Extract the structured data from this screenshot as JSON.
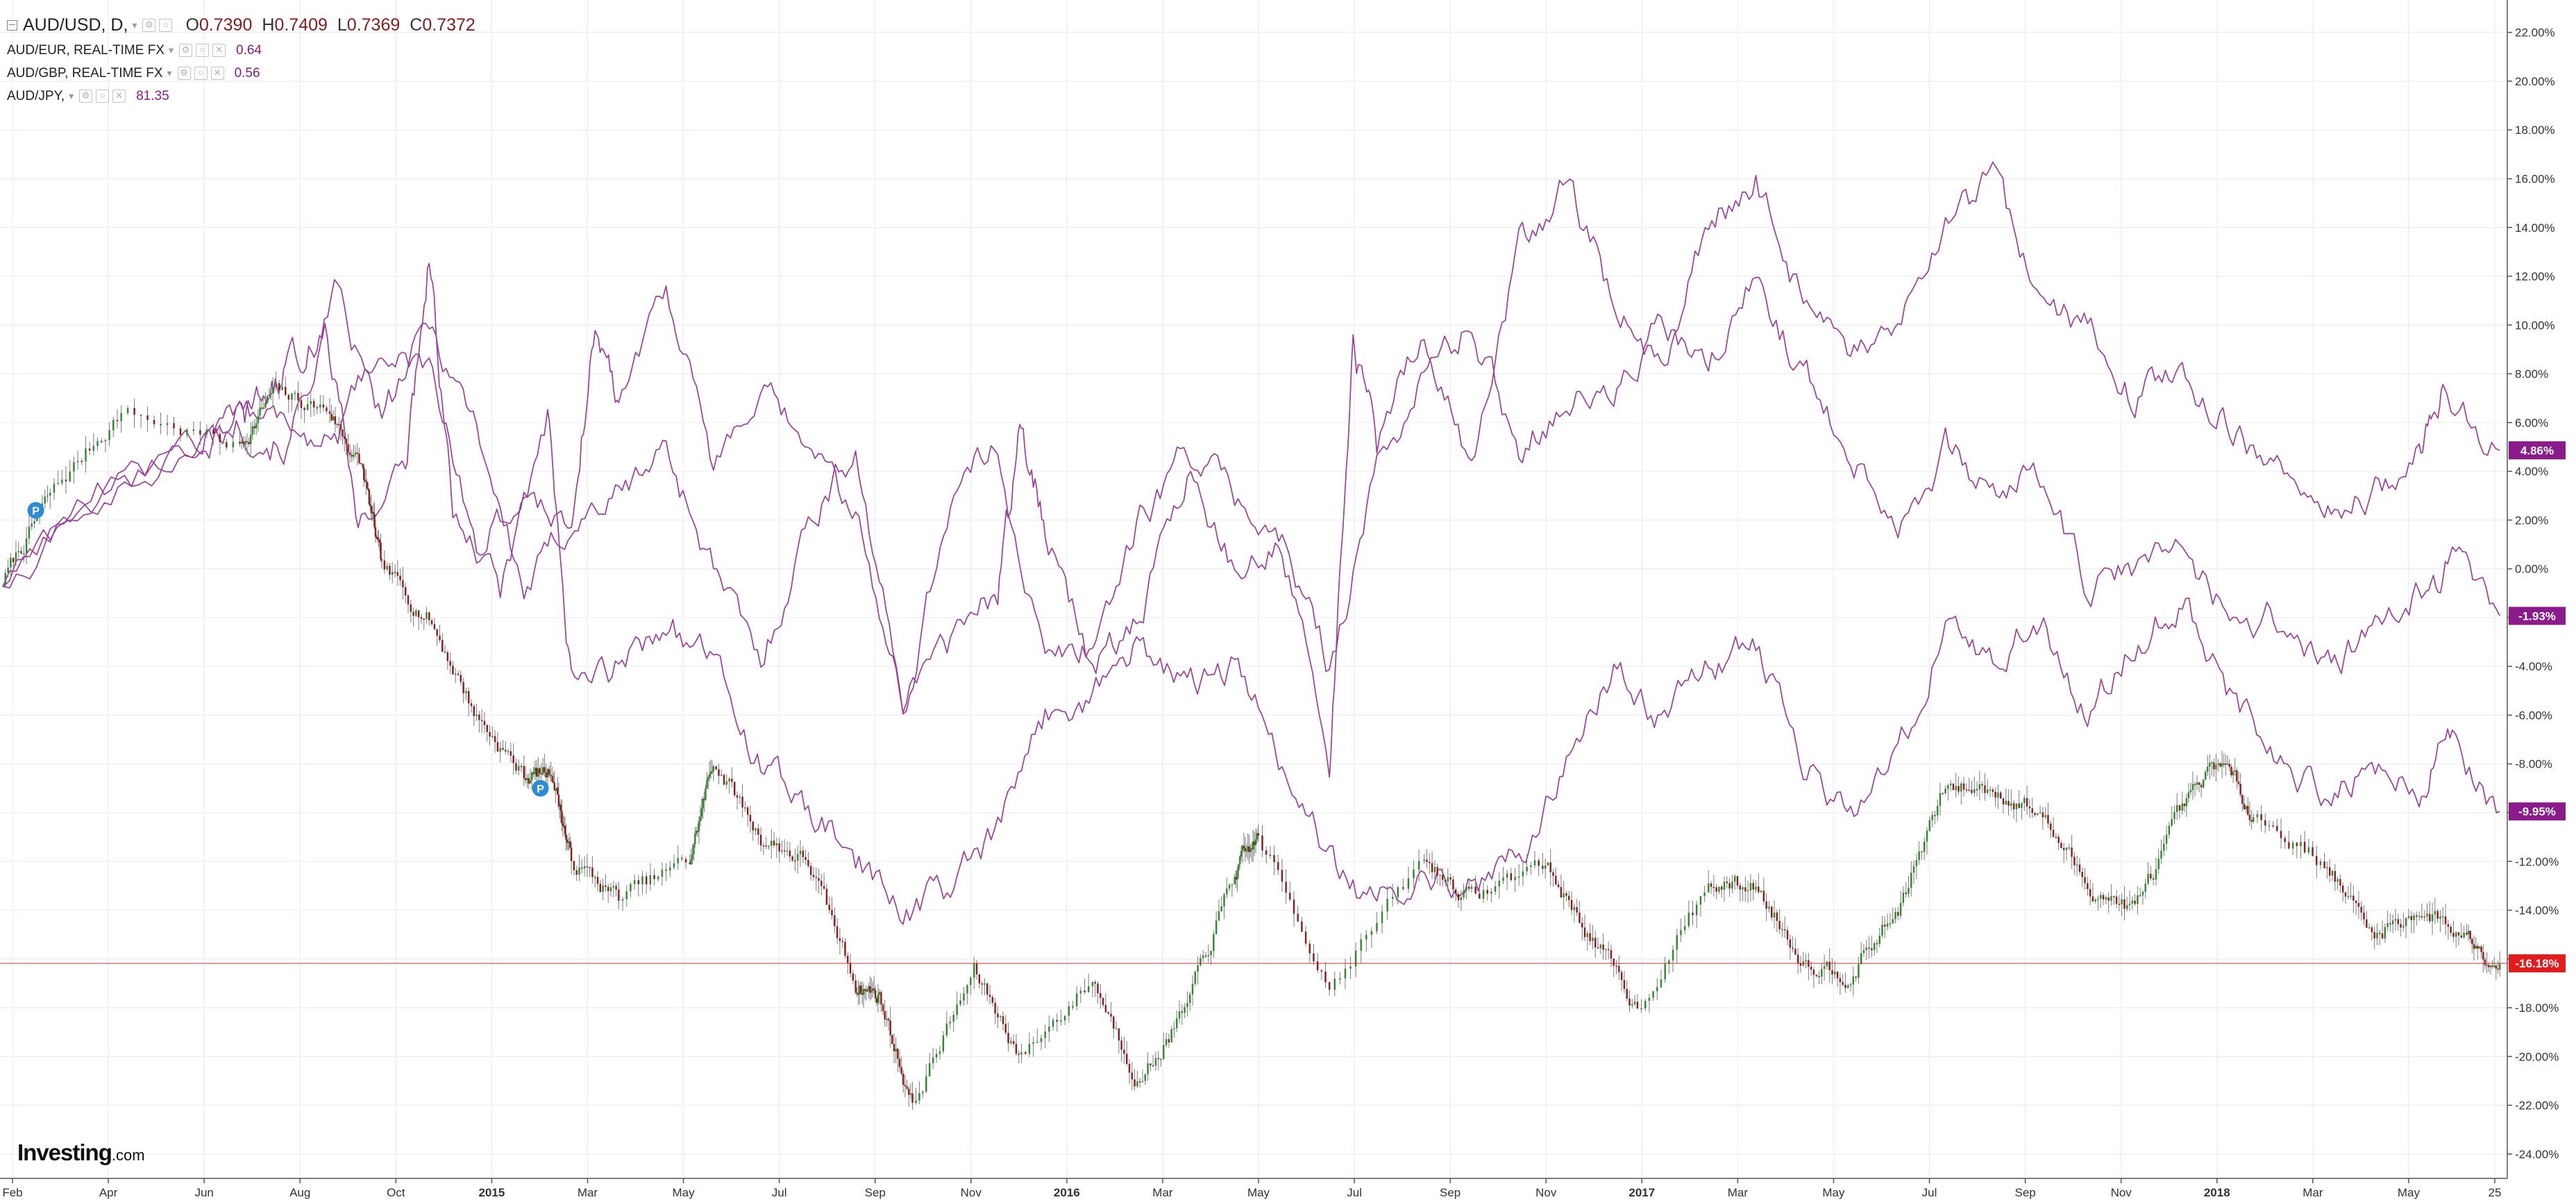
{
  "legend": {
    "main": {
      "symbol": "AUD/USD, D,",
      "o_key": "O",
      "o": "0.7390",
      "h_key": "H",
      "h": "0.7409",
      "l_key": "L",
      "l": "0.7369",
      "c_key": "C",
      "c": "0.7372"
    },
    "overlays": [
      {
        "symbol": "AUD/EUR, REAL-TIME FX",
        "value": "0.64"
      },
      {
        "symbol": "AUD/GBP, REAL-TIME FX",
        "value": "0.56"
      },
      {
        "symbol": "AUD/JPY,",
        "value": "81.35"
      }
    ]
  },
  "branding": {
    "logo": "Investing",
    "suffix": ".com"
  },
  "colors": {
    "overlay": "#9c3f9c",
    "up_candle": "#2b8a2b",
    "down_candle": "#8b1a1a",
    "price_line": "#e51b1b",
    "badge_dark": "#8b1a8b",
    "badge_red": "#e51b1b",
    "grid": "#eef0f3"
  },
  "markers": {
    "event_marker": "P"
  },
  "chart_data": {
    "type": "line",
    "title": "",
    "y_unit": "%",
    "ylim": [
      -24,
      22
    ],
    "yticks": [
      "22.00%",
      "20.00%",
      "18.00%",
      "16.00%",
      "14.00%",
      "12.00%",
      "10.00%",
      "8.00%",
      "6.00%",
      "4.00%",
      "2.00%",
      "0.00%",
      "-2.00%",
      "-4.00%",
      "-6.00%",
      "-8.00%",
      "-10.00%",
      "-12.00%",
      "-14.00%",
      "-16.00%",
      "-18.00%",
      "-20.00%",
      "-22.00%",
      "-24.00%"
    ],
    "xlabels": [
      "Feb",
      "Apr",
      "Jun",
      "Aug",
      "Oct",
      "2015",
      "Mar",
      "May",
      "Jul",
      "Sep",
      "Nov",
      "2016",
      "Mar",
      "May",
      "Jul",
      "Sep",
      "Nov",
      "2017",
      "Mar",
      "May",
      "Jul",
      "Sep",
      "Nov",
      "2018",
      "Mar",
      "May",
      "25"
    ],
    "x_range": [
      0,
      52.8
    ],
    "grid": true,
    "legend_position": "top-left",
    "main_series": {
      "symbol": "AUD/USD",
      "style": "candlestick",
      "last_label": "-16.18%",
      "keypoints": [
        [
          0,
          -0.5
        ],
        [
          1,
          3
        ],
        [
          2.5,
          6.5
        ],
        [
          5,
          5
        ],
        [
          5.7,
          7.2
        ],
        [
          6.9,
          6.5
        ],
        [
          7.6,
          4
        ],
        [
          8,
          0
        ],
        [
          9,
          -2
        ],
        [
          10,
          -6
        ],
        [
          11,
          -8.5
        ],
        [
          11.6,
          -8.3
        ],
        [
          12,
          -12
        ],
        [
          13,
          -13.5
        ],
        [
          14.5,
          -12
        ],
        [
          15,
          -7.8
        ],
        [
          16,
          -11
        ],
        [
          17,
          -12
        ],
        [
          18,
          -17
        ],
        [
          18.5,
          -17.5
        ],
        [
          19.2,
          -22
        ],
        [
          20.5,
          -16.5
        ],
        [
          21.5,
          -20
        ],
        [
          23,
          -16.8
        ],
        [
          24,
          -21
        ],
        [
          25,
          -18
        ],
        [
          26,
          -12.5
        ],
        [
          26.5,
          -11
        ],
        [
          28,
          -17
        ],
        [
          30,
          -12
        ],
        [
          31,
          -13.5
        ],
        [
          32.5,
          -12
        ],
        [
          33.5,
          -15
        ],
        [
          34.5,
          -18
        ],
        [
          36,
          -13
        ],
        [
          37,
          -13
        ],
        [
          38,
          -16
        ],
        [
          39,
          -16.6
        ],
        [
          40,
          -14
        ],
        [
          41,
          -9
        ],
        [
          42,
          -9
        ],
        [
          43,
          -10
        ],
        [
          44,
          -13
        ],
        [
          45,
          -14
        ],
        [
          46,
          -10
        ],
        [
          46.8,
          -7.8
        ],
        [
          47.5,
          -10
        ],
        [
          49,
          -12
        ],
        [
          50,
          -15
        ],
        [
          51,
          -14
        ],
        [
          52,
          -15
        ],
        [
          52.7,
          -16.18
        ]
      ]
    },
    "series": [
      {
        "symbol": "AUD/EUR",
        "last_label": "-1.93%",
        "keypoints": [
          [
            0,
            -0.5
          ],
          [
            2,
            3
          ],
          [
            4,
            5
          ],
          [
            5,
            6
          ],
          [
            6,
            5
          ],
          [
            7,
            11
          ],
          [
            8,
            6
          ],
          [
            9,
            10
          ],
          [
            10,
            6
          ],
          [
            11,
            -1
          ],
          [
            12,
            2
          ],
          [
            13,
            3
          ],
          [
            14,
            5
          ],
          [
            15,
            0
          ],
          [
            16,
            -4
          ],
          [
            17,
            2
          ],
          [
            18,
            5
          ],
          [
            19,
            -6
          ],
          [
            20,
            3
          ],
          [
            21,
            5
          ],
          [
            22,
            -4
          ],
          [
            23,
            -3
          ],
          [
            24,
            2
          ],
          [
            25,
            5
          ],
          [
            26,
            3
          ],
          [
            27,
            1
          ],
          [
            28,
            -4
          ],
          [
            29,
            4
          ],
          [
            30,
            8
          ],
          [
            31,
            10
          ],
          [
            32,
            5
          ],
          [
            33,
            7
          ],
          [
            34,
            7
          ],
          [
            35,
            10
          ],
          [
            36,
            8
          ],
          [
            37,
            12
          ],
          [
            38,
            8
          ],
          [
            39,
            5
          ],
          [
            40,
            2
          ],
          [
            41,
            5
          ],
          [
            42,
            3
          ],
          [
            43,
            4
          ],
          [
            44,
            -1
          ],
          [
            45,
            0
          ],
          [
            46,
            1
          ],
          [
            47,
            -2
          ],
          [
            48,
            -2
          ],
          [
            49,
            -4
          ],
          [
            50,
            -3
          ],
          [
            51,
            -1
          ],
          [
            51.7,
            0.5
          ],
          [
            52.7,
            -1.93
          ]
        ]
      },
      {
        "symbol": "AUD/GBP",
        "last_label": "-9.95%",
        "keypoints": [
          [
            0,
            -0.5
          ],
          [
            2,
            3
          ],
          [
            4,
            5
          ],
          [
            5,
            6
          ],
          [
            5.5,
            7
          ],
          [
            6,
            8
          ],
          [
            6.8,
            10
          ],
          [
            7.5,
            2
          ],
          [
            8.5,
            4
          ],
          [
            9,
            13
          ],
          [
            9.5,
            2
          ],
          [
            10.5,
            -1
          ],
          [
            11.5,
            6
          ],
          [
            12,
            -5
          ],
          [
            13,
            -4
          ],
          [
            14,
            -2
          ],
          [
            15,
            -4
          ],
          [
            16,
            -8
          ],
          [
            17,
            -10
          ],
          [
            18,
            -12
          ],
          [
            19,
            -14
          ],
          [
            20,
            -13
          ],
          [
            21,
            -11
          ],
          [
            22,
            -6
          ],
          [
            23,
            -5
          ],
          [
            24,
            -3
          ],
          [
            25,
            -5
          ],
          [
            26,
            -4
          ],
          [
            27,
            -8
          ],
          [
            28,
            -12
          ],
          [
            29,
            -14
          ],
          [
            30,
            -12
          ],
          [
            31,
            -13
          ],
          [
            32,
            -12
          ],
          [
            33,
            -8
          ],
          [
            34,
            -4
          ],
          [
            35,
            -6
          ],
          [
            36,
            -4
          ],
          [
            37,
            -3
          ],
          [
            38,
            -8
          ],
          [
            39,
            -10
          ],
          [
            40,
            -8
          ],
          [
            41,
            -2
          ],
          [
            42,
            -4
          ],
          [
            43,
            -2
          ],
          [
            44,
            -6
          ],
          [
            45,
            -3
          ],
          [
            46,
            -1
          ],
          [
            47,
            -5
          ],
          [
            48,
            -8
          ],
          [
            49,
            -9
          ],
          [
            50,
            -8
          ],
          [
            51,
            -9
          ],
          [
            51.7,
            -7
          ],
          [
            52.7,
            -9.95
          ]
        ]
      },
      {
        "symbol": "AUD/JPY",
        "last_label": "4.86%",
        "keypoints": [
          [
            0,
            -0.5
          ],
          [
            2,
            3
          ],
          [
            4,
            5
          ],
          [
            5,
            7
          ],
          [
            6,
            6
          ],
          [
            7,
            5
          ],
          [
            8,
            9
          ],
          [
            9,
            8
          ],
          [
            10,
            1
          ],
          [
            11,
            3
          ],
          [
            12,
            2
          ],
          [
            12.5,
            10
          ],
          [
            13,
            7
          ],
          [
            14,
            12
          ],
          [
            15,
            4
          ],
          [
            16,
            7
          ],
          [
            17,
            5
          ],
          [
            18,
            2
          ],
          [
            19,
            -5
          ],
          [
            20,
            -3
          ],
          [
            21,
            -1
          ],
          [
            21.5,
            6
          ],
          [
            22,
            2
          ],
          [
            23,
            -4
          ],
          [
            24,
            -2
          ],
          [
            25,
            4
          ],
          [
            26,
            0
          ],
          [
            27,
            1
          ],
          [
            28,
            -8
          ],
          [
            28.5,
            9
          ],
          [
            29,
            5
          ],
          [
            30,
            10
          ],
          [
            31,
            4
          ],
          [
            32,
            13
          ],
          [
            33,
            16
          ],
          [
            34,
            11
          ],
          [
            35,
            8
          ],
          [
            36,
            14
          ],
          [
            37,
            16
          ],
          [
            38,
            11
          ],
          [
            39,
            8
          ],
          [
            40,
            10
          ],
          [
            41,
            14
          ],
          [
            42,
            16
          ],
          [
            43,
            11
          ],
          [
            44,
            10
          ],
          [
            45,
            7
          ],
          [
            46,
            8
          ],
          [
            47,
            6
          ],
          [
            48,
            4
          ],
          [
            49,
            2
          ],
          [
            50,
            3
          ],
          [
            51,
            5
          ],
          [
            51.5,
            7
          ],
          [
            52.7,
            4.86
          ]
        ]
      }
    ]
  }
}
